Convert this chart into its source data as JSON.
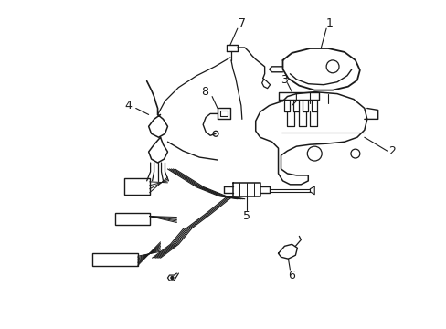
{
  "background_color": "#ffffff",
  "line_color": "#1a1a1a",
  "line_width": 1.0,
  "label_fontsize": 9,
  "fig_width": 4.89,
  "fig_height": 3.6,
  "dpi": 100
}
